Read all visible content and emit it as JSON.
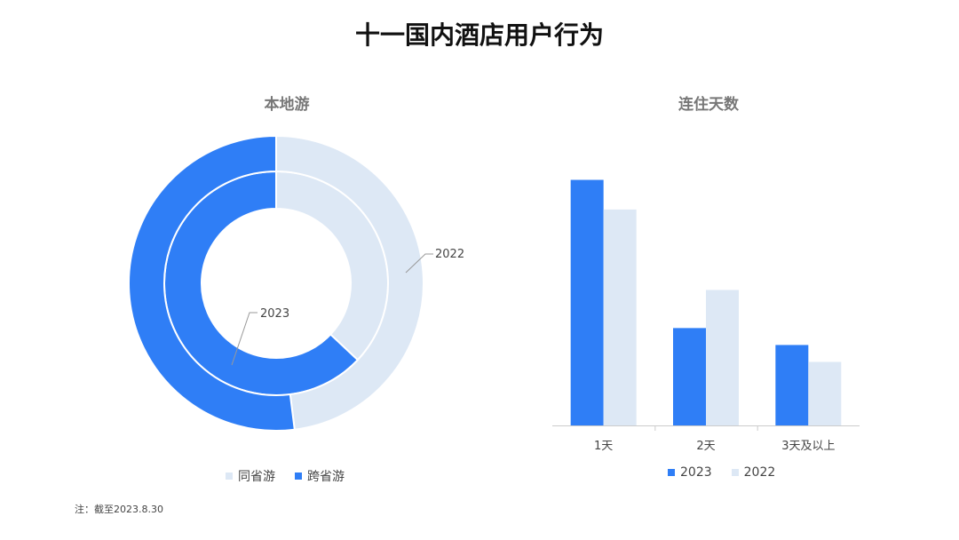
{
  "title": "十一国内酒店用户行为",
  "footnote": "注：截至2023.8.30",
  "colors": {
    "blue": "#2f7ef6",
    "light": "#dde8f5"
  },
  "chart_data": [
    {
      "type": "pie",
      "title": "本地游",
      "categories": [
        "同省游",
        "跨省游"
      ],
      "series": [
        {
          "name": "2023",
          "values": [
            0.37,
            0.63
          ]
        },
        {
          "name": "2022",
          "values": [
            0.48,
            0.52
          ]
        }
      ],
      "ring_labels": [
        "2023",
        "2022"
      ],
      "legend": {
        "position": "bottom",
        "entries": [
          "同省游",
          "跨省游"
        ]
      }
    },
    {
      "type": "bar",
      "title": "连住天数",
      "categories": [
        "1天",
        "2天",
        "3天及以上"
      ],
      "series": [
        {
          "name": "2023",
          "values": [
            0.58,
            0.23,
            0.19
          ]
        },
        {
          "name": "2022",
          "values": [
            0.51,
            0.32,
            0.15
          ]
        }
      ],
      "ylim": [
        0,
        0.6
      ],
      "grid": false,
      "legend": {
        "position": "bottom",
        "entries": [
          "2023",
          "2022"
        ]
      }
    }
  ]
}
